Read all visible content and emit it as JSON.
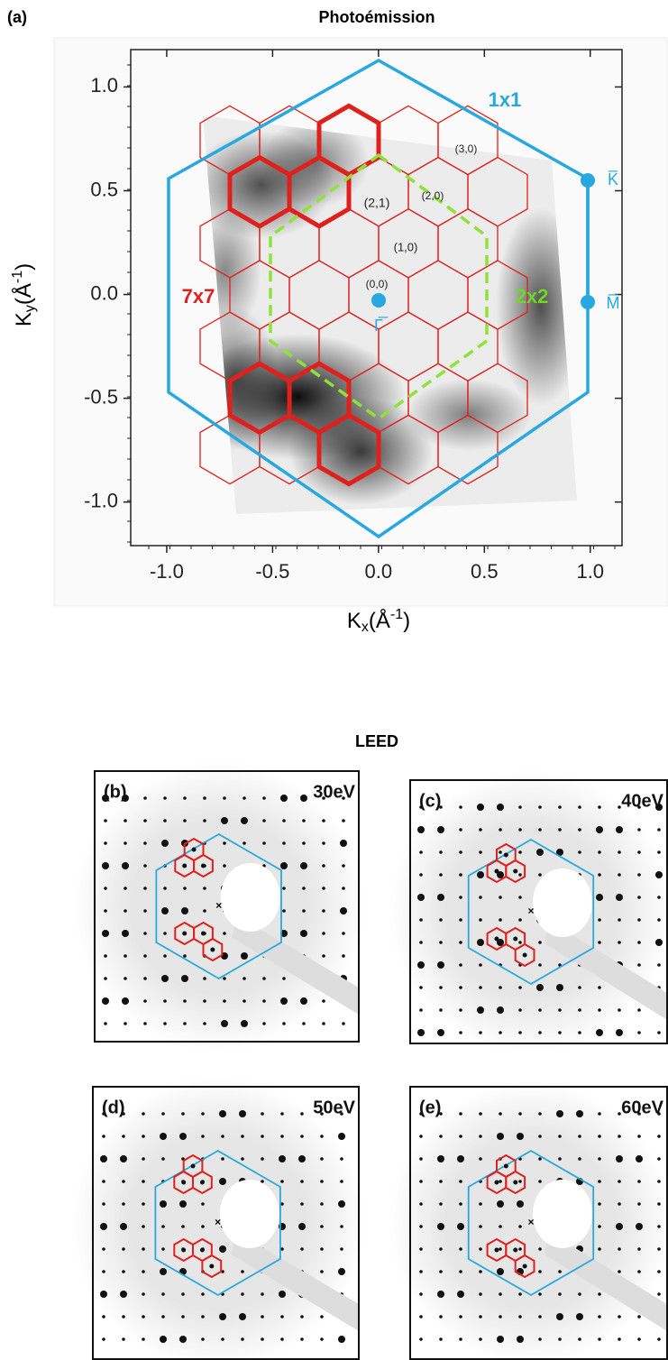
{
  "panel_a": {
    "label": "(a)",
    "title": "Photoémission",
    "chart_data": {
      "type": "heatmap",
      "xlim": [
        -1.17,
        1.15
      ],
      "ylim": [
        -1.21,
        1.18
      ],
      "xticks": [
        {
          "value": -1,
          "label": "-1.0"
        },
        -0.5,
        {
          "value": 0,
          "label": "0.0"
        },
        0.5,
        {
          "value": 1,
          "label": "1.0"
        }
      ],
      "yticks": [
        {
          "value": -1,
          "label": "-1.0"
        },
        -0.5,
        {
          "value": 0,
          "label": "0.0"
        },
        0.5,
        {
          "value": 1,
          "label": "1.0"
        }
      ],
      "x_label": {
        "symbol": "K",
        "sub": "x",
        "open": "(Å",
        "sup": "-1",
        "close": ")"
      },
      "y_label": {
        "symbol": "K",
        "sub": "y",
        "open": "(Å",
        "sup": "-1",
        "close": ")"
      },
      "annotations": {
        "lattice_1x1": "1x1",
        "lattice_7x7": "7x7",
        "lattice_2x2": "2x2",
        "spots": [
          "(3,0)",
          "(2,1)",
          "(2,0)",
          "(1,0)",
          "(0,0)"
        ],
        "k_point": "K̅",
        "m_point": "M̅",
        "gamma_point": "Γ̅"
      }
    }
  },
  "leed": {
    "title": "LEED",
    "panels": [
      {
        "label": "(b)",
        "energy": "30eV"
      },
      {
        "label": "(c)",
        "energy": "40eV"
      },
      {
        "label": "(d)",
        "energy": "50eV"
      },
      {
        "label": "(e)",
        "energy": "60eV"
      }
    ]
  }
}
